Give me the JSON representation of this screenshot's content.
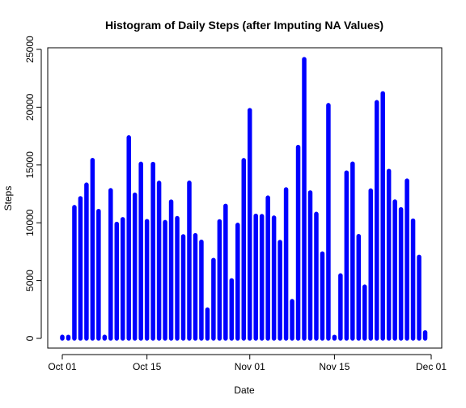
{
  "chart_data": {
    "type": "bar",
    "title": "Histogram of Daily Steps (after Imputing NA Values)",
    "xlabel": "Date",
    "ylabel": "Steps",
    "x_ticks": [
      "Oct 01",
      "Oct 15",
      "Nov 01",
      "Nov 15",
      "Dec 01"
    ],
    "x_tick_dates": [
      "2012-10-01",
      "2012-10-15",
      "2012-11-01",
      "2012-11-15",
      "2012-12-01"
    ],
    "y_ticks": [
      0,
      5000,
      10000,
      15000,
      20000,
      25000
    ],
    "ylim": [
      -900,
      25300
    ],
    "xlim": [
      "2012-09-30",
      "2012-12-01"
    ],
    "grid": false,
    "color": "#0000ff",
    "series": [
      {
        "dates": [
          "2012-10-01",
          "2012-10-02",
          "2012-10-03",
          "2012-10-04",
          "2012-10-05",
          "2012-10-06",
          "2012-10-07",
          "2012-10-08",
          "2012-10-09",
          "2012-10-10",
          "2012-10-11",
          "2012-10-12",
          "2012-10-13",
          "2012-10-14",
          "2012-10-15",
          "2012-10-16",
          "2012-10-17",
          "2012-10-18",
          "2012-10-19",
          "2012-10-20",
          "2012-10-21",
          "2012-10-22",
          "2012-10-23",
          "2012-10-24",
          "2012-10-25",
          "2012-10-26",
          "2012-10-27",
          "2012-10-28",
          "2012-10-29",
          "2012-10-30",
          "2012-10-31",
          "2012-11-01",
          "2012-11-02",
          "2012-11-03",
          "2012-11-04",
          "2012-11-05",
          "2012-11-06",
          "2012-11-07",
          "2012-11-08",
          "2012-11-09",
          "2012-11-10",
          "2012-11-11",
          "2012-11-12",
          "2012-11-13",
          "2012-11-14",
          "2012-11-15",
          "2012-11-16",
          "2012-11-17",
          "2012-11-18",
          "2012-11-19",
          "2012-11-20",
          "2012-11-21",
          "2012-11-22",
          "2012-11-23",
          "2012-11-24",
          "2012-11-25",
          "2012-11-26",
          "2012-11-27",
          "2012-11-28",
          "2012-11-29",
          "2012-11-30"
        ],
        "values": [
          128,
          126,
          11352,
          12116,
          13294,
          15420,
          11015,
          128,
          12811,
          9900,
          10304,
          17382,
          12426,
          15098,
          10139,
          15084,
          13452,
          10056,
          11829,
          10395,
          8821,
          13460,
          8918,
          8355,
          2492,
          6778,
          10119,
          11458,
          5018,
          9819,
          15414,
          19743,
          10600,
          10571,
          12175,
          10439,
          8334,
          12883,
          3219,
          16552,
          24153,
          12617,
          10765,
          7336,
          20175,
          126,
          5441,
          14339,
          15110,
          8841,
          4472,
          12787,
          20427,
          21194,
          14478,
          11834,
          11162,
          13646,
          10183,
          7047,
          515
        ]
      }
    ]
  }
}
